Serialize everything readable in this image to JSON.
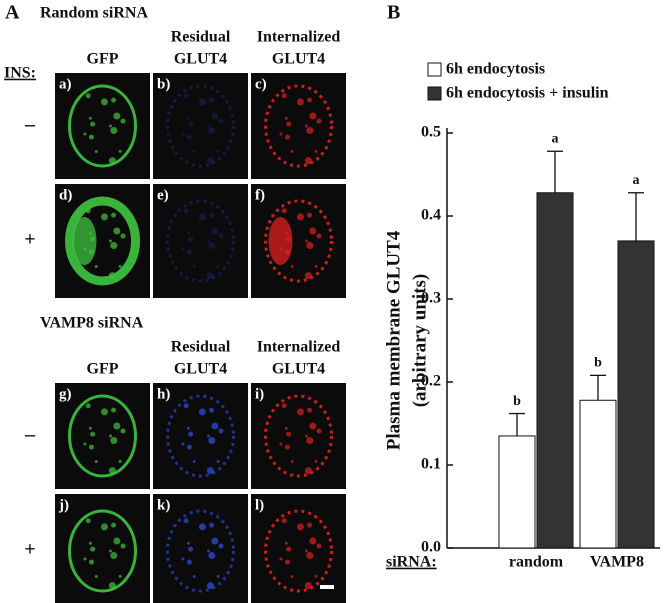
{
  "panel_a": {
    "label": "A",
    "ins_label": "INS:",
    "sections": [
      {
        "title": "Random siRNA",
        "headers": [
          [
            "GFP"
          ],
          [
            "Residual",
            "GLUT4"
          ],
          [
            "Internalized",
            "GLUT4"
          ]
        ],
        "rows": [
          {
            "sign": "–",
            "tiles": [
              "a)",
              "b)",
              "c)"
            ]
          },
          {
            "sign": "+",
            "tiles": [
              "d)",
              "e)",
              "f)"
            ]
          }
        ]
      },
      {
        "title": "VAMP8 siRNA",
        "headers": [
          [
            "GFP"
          ],
          [
            "Residual",
            "GLUT4"
          ],
          [
            "Internalized",
            "GLUT4"
          ]
        ],
        "rows": [
          {
            "sign": "–",
            "tiles": [
              "g)",
              "h)",
              "i)"
            ]
          },
          {
            "sign": "+",
            "tiles": [
              "j)",
              "k)",
              "l)"
            ]
          }
        ]
      }
    ]
  },
  "chart_data": {
    "type": "bar",
    "panel_label": "B",
    "y_label": [
      "Plasma membrane GLUT4",
      "(arbitrary units)"
    ],
    "x_label": "siRNA:",
    "categories": [
      "random",
      "VAMP8"
    ],
    "series": [
      {
        "name": "6h endocytosis",
        "color": "#ffffff",
        "values": [
          0.135,
          0.178
        ],
        "errors": [
          0.027,
          0.03
        ],
        "significance": [
          "b",
          "b"
        ]
      },
      {
        "name": "6h endocytosis + insulin",
        "color": "#333333",
        "values": [
          0.428,
          0.37
        ],
        "errors": [
          0.05,
          0.058
        ],
        "significance": [
          "a",
          "a"
        ]
      }
    ],
    "ylim": [
      0,
      0.5
    ],
    "yticks": [
      {
        "value": 0,
        "label": "0.0"
      },
      0.1,
      0.2,
      0.3,
      0.4,
      0.5
    ],
    "legend": "top"
  }
}
